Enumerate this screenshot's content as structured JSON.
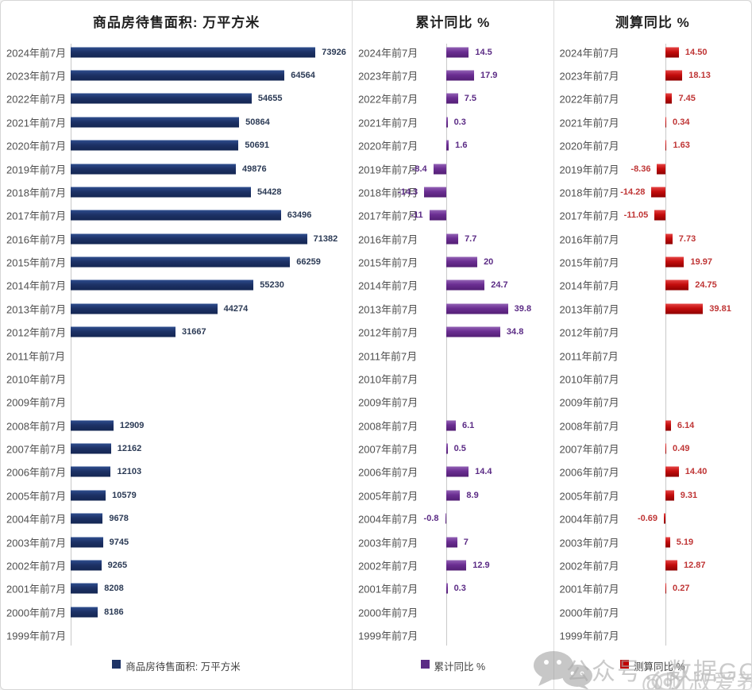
{
  "watermark": {
    "publisher_line": "公众号：数据GO",
    "handle_line": "@财叔爱养基"
  },
  "chart_data": [
    {
      "type": "bar",
      "orientation": "horizontal",
      "title": "商品房待售面积: 万平方米",
      "legend_label": "商品房待售面积: 万平方米",
      "bar_color": "#1f3467",
      "xlim": [
        0,
        82000
      ],
      "categories": [
        "2024年前7月",
        "2023年前7月",
        "2022年前7月",
        "2021年前7月",
        "2020年前7月",
        "2019年前7月",
        "2018年前7月",
        "2017年前7月",
        "2016年前7月",
        "2015年前7月",
        "2014年前7月",
        "2013年前7月",
        "2012年前7月",
        "2011年前7月",
        "2010年前7月",
        "2009年前7月",
        "2008年前7月",
        "2007年前7月",
        "2006年前7月",
        "2005年前7月",
        "2004年前7月",
        "2003年前7月",
        "2002年前7月",
        "2001年前7月",
        "2000年前7月",
        "1999年前7月"
      ],
      "values": [
        73926,
        64564,
        54655,
        50864,
        50691,
        49876,
        54428,
        63496,
        71382,
        66259,
        55230,
        44274,
        31667,
        null,
        null,
        null,
        12909,
        12162,
        12103,
        10579,
        9678,
        9745,
        9265,
        8208,
        8186,
        null
      ],
      "value_labels": [
        "73926",
        "64564",
        "54655",
        "50864",
        "50691",
        "49876",
        "54428",
        "63496",
        "71382",
        "66259",
        "55230",
        "44274",
        "31667",
        "",
        "",
        "",
        "12909",
        "12162",
        "12103",
        "10579",
        "9678",
        "9745",
        "9265",
        "8208",
        "8186",
        ""
      ]
    },
    {
      "type": "bar",
      "orientation": "horizontal",
      "title": "累计同比 %",
      "legend_label": "累计同比 %",
      "bar_color": "#6b2e92",
      "xlim": [
        -20,
        45
      ],
      "categories": [
        "2024年前7月",
        "2023年前7月",
        "2022年前7月",
        "2021年前7月",
        "2020年前7月",
        "2019年前7月",
        "2018年前7月",
        "2017年前7月",
        "2016年前7月",
        "2015年前7月",
        "2014年前7月",
        "2013年前7月",
        "2012年前7月",
        "2011年前7月",
        "2010年前7月",
        "2009年前7月",
        "2008年前7月",
        "2007年前7月",
        "2006年前7月",
        "2005年前7月",
        "2004年前7月",
        "2003年前7月",
        "2002年前7月",
        "2001年前7月",
        "2000年前7月",
        "1999年前7月"
      ],
      "values": [
        14.5,
        17.9,
        7.5,
        0.3,
        1.6,
        -8.4,
        -14.3,
        -11,
        7.7,
        20,
        24.7,
        39.8,
        34.8,
        null,
        null,
        null,
        6.1,
        0.5,
        14.4,
        8.9,
        -0.8,
        7,
        12.9,
        0.3,
        null,
        null
      ],
      "value_labels": [
        "14.5",
        "17.9",
        "7.5",
        "0.3",
        "1.6",
        "-8.4",
        "-14.3",
        "-11",
        "7.7",
        "20",
        "24.7",
        "39.8",
        "34.8",
        "",
        "",
        "",
        "6.1",
        "0.5",
        "14.4",
        "8.9",
        "-0.8",
        "7",
        "12.9",
        "0.3",
        "",
        ""
      ]
    },
    {
      "type": "bar",
      "orientation": "horizontal",
      "title": "测算同比 %",
      "legend_label": "测算同比 %",
      "bar_color": "#c00000",
      "xlim": [
        -20,
        45
      ],
      "categories": [
        "2024年前7月",
        "2023年前7月",
        "2022年前7月",
        "2021年前7月",
        "2020年前7月",
        "2019年前7月",
        "2018年前7月",
        "2017年前7月",
        "2016年前7月",
        "2015年前7月",
        "2014年前7月",
        "2013年前7月",
        "2012年前7月",
        "2011年前7月",
        "2010年前7月",
        "2009年前7月",
        "2008年前7月",
        "2007年前7月",
        "2006年前7月",
        "2005年前7月",
        "2004年前7月",
        "2003年前7月",
        "2002年前7月",
        "2001年前7月",
        "2000年前7月",
        "1999年前7月"
      ],
      "values": [
        14.5,
        18.13,
        7.45,
        0.34,
        1.63,
        -8.36,
        -14.28,
        -11.05,
        7.73,
        19.97,
        24.75,
        39.81,
        null,
        null,
        null,
        null,
        6.14,
        0.49,
        14.4,
        9.31,
        -0.69,
        5.19,
        12.87,
        0.27,
        null,
        null
      ],
      "value_labels": [
        "14.50",
        "18.13",
        "7.45",
        "0.34",
        "1.63",
        "-8.36",
        "-14.28",
        "-11.05",
        "7.73",
        "19.97",
        "24.75",
        "39.81",
        "",
        "",
        "",
        "",
        "6.14",
        "0.49",
        "14.40",
        "9.31",
        "-0.69",
        "5.19",
        "12.87",
        "0.27",
        "",
        ""
      ]
    }
  ]
}
